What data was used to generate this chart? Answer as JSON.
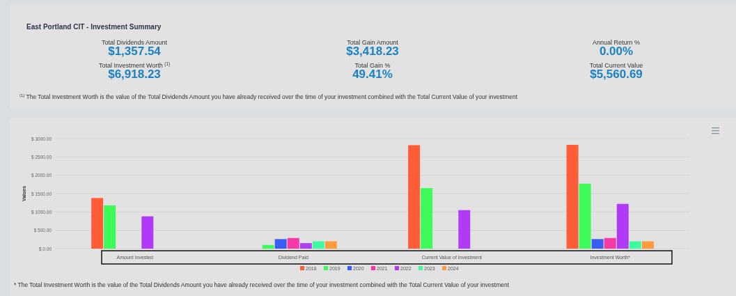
{
  "chart_data": [
    {
      "type": "other",
      "title": "East Portland CIT - Investment Summary",
      "annotations": [
        "Total Dividends Amount",
        "$1,357.54",
        "Total Investment Worth $^{(1)}$",
        "$6,918.23",
        "Total Gain Amount",
        "$3,418.23",
        "Total Gain %",
        "49.41%",
        "Annual Return %",
        "0.00%",
        "Total Current Value",
        "$5,560.69",
        "$^{(1)}$ The Total Investment Worth is the value of the Total Dividends Amount you have already received over the time of your investment combined with the Total Current Value of your investment"
      ]
    },
    {
      "type": "bar",
      "ylabel": "Values",
      "categories": [
        "Amount Invested",
        "Dividend Paid",
        "Current Value of Investment",
        "Investment Worth*"
      ],
      "series": [
        {
          "name": "2018",
          "color": "#ff5c38",
          "values": [
            1380,
            null,
            2820,
            2830
          ]
        },
        {
          "name": "2019",
          "color": "#3dfc5a",
          "values": [
            1180,
            100,
            1650,
            1770
          ]
        },
        {
          "name": "2020",
          "color": "#3a5ef5",
          "values": [
            null,
            260,
            null,
            260
          ]
        },
        {
          "name": "2021",
          "color": "#f53aa8",
          "values": [
            null,
            290,
            null,
            290
          ]
        },
        {
          "name": "2022",
          "color": "#b03af5",
          "values": [
            880,
            150,
            1050,
            1220
          ]
        },
        {
          "name": "2023",
          "color": "#3dfca0",
          "values": [
            null,
            200,
            null,
            200
          ]
        },
        {
          "name": "2024",
          "color": "#ff9a3d",
          "values": [
            null,
            200,
            null,
            200
          ]
        }
      ],
      "ylim": [
        0,
        3000
      ],
      "yticks": [
        {
          "value": 0,
          "label": "$ 0.00"
        },
        {
          "value": 500,
          "label": "$ 500.00"
        },
        {
          "value": 1000,
          "label": "$ 1000.00"
        },
        {
          "value": 1500,
          "label": "$ 1500.00"
        },
        {
          "value": 2000,
          "label": "$ 2000.00"
        },
        {
          "value": 2500,
          "label": "$ 2500.00"
        },
        {
          "value": 3000,
          "label": "$ 3000.00"
        }
      ],
      "grid": "y",
      "legend": "bottom",
      "annotations": [
        "* The Total Investment Worth is the value of the Total Dividends Amount you have already received over the time of your investment combined with the Total Current Value of your investment"
      ]
    }
  ]
}
